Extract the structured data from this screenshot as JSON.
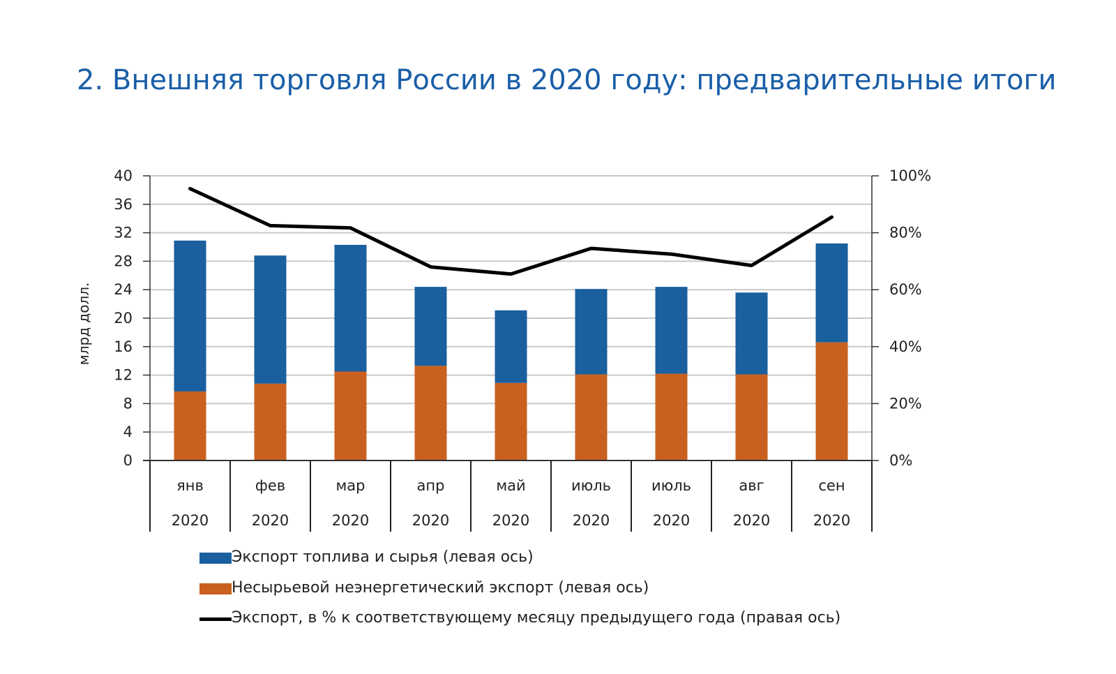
{
  "page": {
    "title": "2. Внешняя торговля России в 2020 году: предварительные итоги"
  },
  "colors": {
    "title": "#1a5ea8",
    "fuel": "#1a5f9e",
    "nonfuel": "#c9601f",
    "line": "#000000",
    "grid": "#c8c8c8"
  },
  "chart_data": {
    "type": "bar",
    "stacked": true,
    "categories": [
      [
        "янв",
        "2020"
      ],
      [
        "фев",
        "2020"
      ],
      [
        "мар",
        "2020"
      ],
      [
        "апр",
        "2020"
      ],
      [
        "май",
        "2020"
      ],
      [
        "июль",
        "2020"
      ],
      [
        "июль",
        "2020"
      ],
      [
        "авг",
        "2020"
      ],
      [
        "сен",
        "2020"
      ]
    ],
    "ylabel": "млрд долл.",
    "ylim": [
      0,
      40
    ],
    "yticks": [
      0,
      4,
      8,
      12,
      16,
      20,
      24,
      28,
      32,
      36,
      40
    ],
    "y2lim": [
      0,
      100
    ],
    "y2ticks": [
      "0%",
      "20%",
      "40%",
      "60%",
      "80%",
      "100%"
    ],
    "grid": true,
    "series": [
      {
        "name": "Несырьевой неэнергетический экспорт (левая ось)",
        "axis": "left",
        "type": "bar",
        "values": [
          9.7,
          10.8,
          12.5,
          13.3,
          10.9,
          12.1,
          12.2,
          12.1,
          16.6
        ]
      },
      {
        "name": "Экспорт топлива и сырья (левая ось)",
        "axis": "left",
        "type": "bar",
        "values": [
          21.2,
          18.0,
          17.8,
          11.1,
          10.2,
          12.0,
          12.2,
          11.5,
          13.9
        ]
      },
      {
        "name": "Экспорт, в % к соответствующему месяцу предыдущего года (правая ось)",
        "axis": "right",
        "type": "line",
        "values": [
          95.5,
          82.5,
          81.7,
          68.0,
          65.5,
          74.5,
          72.5,
          68.5,
          85.5
        ]
      }
    ],
    "legend": {
      "position": "bottom",
      "entries": [
        "Экспорт топлива и сырья (левая ось)",
        "Несырьевой неэнергетический экспорт (левая ось)",
        "Экспорт, в % к соответствующему месяцу предыдущего года (правая ось)"
      ]
    }
  }
}
